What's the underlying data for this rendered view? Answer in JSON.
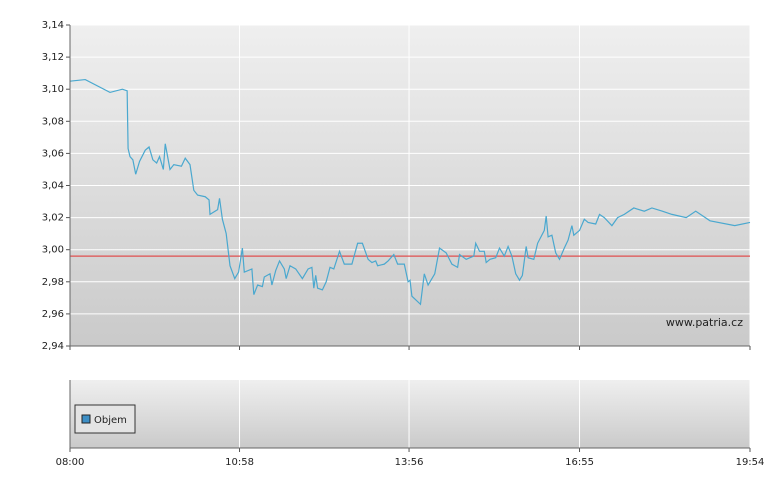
{
  "chart_data": [
    {
      "type": "line",
      "color": "#4aa8cf",
      "x": [
        480,
        496,
        522,
        535,
        540,
        541,
        543,
        546,
        549,
        553,
        559,
        563,
        567,
        571,
        574,
        578,
        580,
        585,
        589,
        597,
        601,
        606,
        610,
        614,
        622,
        626,
        627,
        635,
        637,
        640,
        644,
        648,
        653,
        657,
        661,
        663,
        671,
        673,
        677,
        682,
        684,
        690,
        692,
        696,
        700,
        705,
        707,
        711,
        717,
        724,
        730,
        734,
        736,
        738,
        740,
        745,
        749,
        753,
        757,
        763,
        768,
        776,
        782,
        787,
        793,
        797,
        801,
        803,
        810,
        814,
        820,
        824,
        831,
        835,
        837,
        839,
        848,
        852,
        856,
        863,
        868,
        875,
        881,
        887,
        889,
        896,
        900,
        904,
        906,
        910,
        915,
        917,
        921,
        927,
        931,
        936,
        940,
        944,
        948,
        952,
        955,
        959,
        961,
        967,
        971,
        978,
        980,
        982,
        986,
        990,
        994,
        999,
        1003,
        1007,
        1009,
        1015,
        1020,
        1024,
        1032,
        1036,
        1041,
        1049,
        1055,
        1062,
        1072,
        1083,
        1091,
        1102,
        1112,
        1127,
        1137,
        1152,
        1178,
        1194
      ],
      "values": [
        3.105,
        3.106,
        3.098,
        3.1,
        3.099,
        3.063,
        3.058,
        3.056,
        3.047,
        3.055,
        3.062,
        3.064,
        3.056,
        3.054,
        3.058,
        3.05,
        3.066,
        3.05,
        3.053,
        3.052,
        3.057,
        3.053,
        3.037,
        3.034,
        3.033,
        3.031,
        3.022,
        3.025,
        3.032,
        3.019,
        3.01,
        2.99,
        2.982,
        2.986,
        3.001,
        2.986,
        2.988,
        2.972,
        2.978,
        2.977,
        2.983,
        2.985,
        2.978,
        2.987,
        2.993,
        2.988,
        2.982,
        2.99,
        2.988,
        2.982,
        2.988,
        2.989,
        2.976,
        2.984,
        2.976,
        2.975,
        2.98,
        2.989,
        2.988,
        2.999,
        2.991,
        2.991,
        3.004,
        3.004,
        2.994,
        2.992,
        2.993,
        2.99,
        2.991,
        2.993,
        2.997,
        2.991,
        2.991,
        2.98,
        2.981,
        2.971,
        2.966,
        2.985,
        2.978,
        2.985,
        3.001,
        2.998,
        2.991,
        2.989,
        2.997,
        2.994,
        2.995,
        2.996,
        3.004,
        2.999,
        2.999,
        2.992,
        2.994,
        2.995,
        3.001,
        2.996,
        3.002,
        2.996,
        2.985,
        2.981,
        2.984,
        3.002,
        2.995,
        2.994,
        3.004,
        3.012,
        3.021,
        3.008,
        3.009,
        2.998,
        2.994,
        3.001,
        3.006,
        3.015,
        3.009,
        3.012,
        3.019,
        3.017,
        3.016,
        3.022,
        3.02,
        3.015,
        3.02,
        3.022,
        3.026,
        3.024,
        3.026,
        3.024,
        3.022,
        3.02,
        3.024,
        3.018,
        3.015,
        3.017
      ],
      "ylim": [
        2.94,
        3.14
      ],
      "yticks": [
        {
          "value": 2.94,
          "label": "2,94"
        },
        {
          "value": 2.96,
          "label": "2,96"
        },
        {
          "value": 2.98,
          "label": "2,98"
        },
        {
          "value": 3.0,
          "label": "3,00"
        },
        {
          "value": 3.02,
          "label": "3,02"
        },
        {
          "value": 3.04,
          "label": "3,04"
        },
        {
          "value": 3.06,
          "label": "3,06"
        },
        {
          "value": 3.08,
          "label": "3,08"
        },
        {
          "value": 3.1,
          "label": "3,10"
        },
        {
          "value": 3.12,
          "label": "3,12"
        },
        {
          "value": 3.14,
          "label": "3,14"
        }
      ],
      "reference_line": 2.996,
      "reference_color": "#e05050",
      "watermark": "www.patria.cz",
      "grid": true
    },
    {
      "type": "bar",
      "series": [
        {
          "name": "Objem",
          "color": "#3d8fc6",
          "values": []
        }
      ],
      "xlim": [
        480,
        1194
      ],
      "xticks": [
        {
          "value": 480,
          "label": "08:00"
        },
        {
          "value": 658,
          "label": "10:58"
        },
        {
          "value": 836,
          "label": "13:56"
        },
        {
          "value": 1015,
          "label": "16:55"
        },
        {
          "value": 1194,
          "label": "19:54"
        }
      ],
      "grid": true
    }
  ]
}
